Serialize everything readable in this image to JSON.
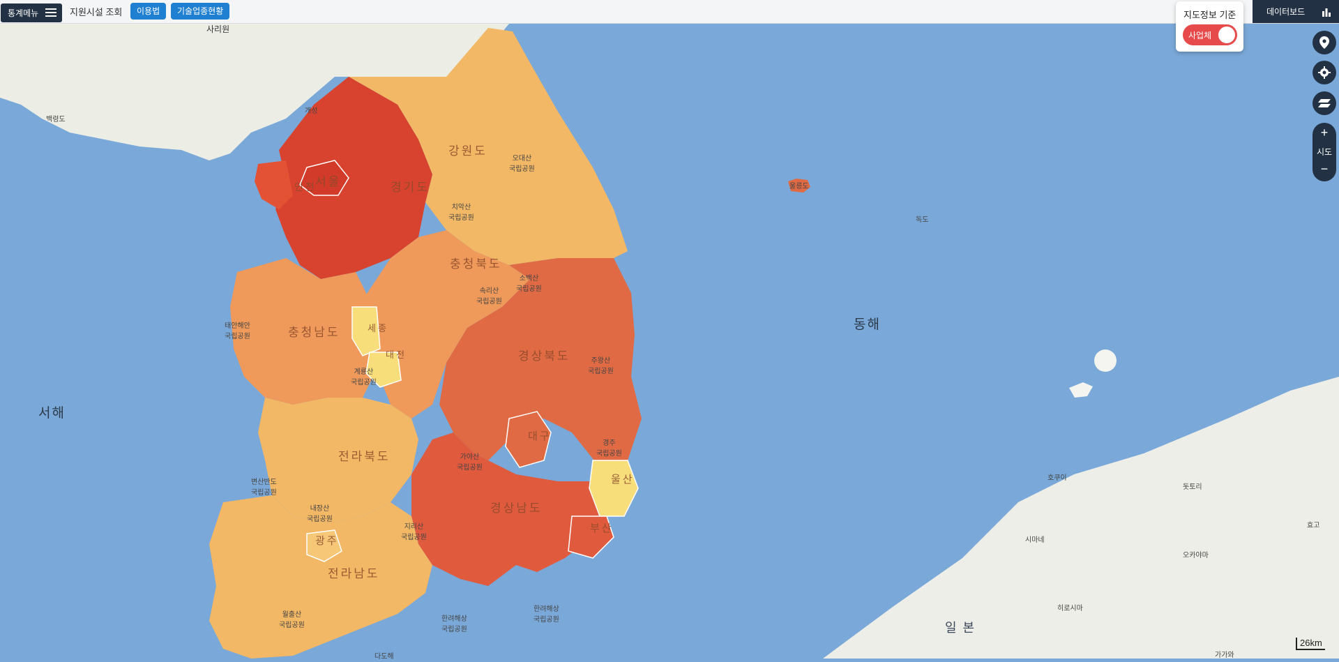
{
  "topbar": {
    "menu_label": "통계메뉴",
    "support_label": "지원시설 조회",
    "usage_button": "이용법",
    "tech_button": "기술업종현황",
    "dashboard_label": "데이터보드"
  },
  "map_criteria": {
    "title": "지도정보 기준",
    "toggle_label": "사업체",
    "toggle_on": true,
    "accent_color": "#e74a4a"
  },
  "controls": {
    "zoom_in": "+",
    "zoom_level_label": "시도",
    "zoom_out": "−"
  },
  "map": {
    "seas": [
      "서해",
      "동해"
    ],
    "country_label": "일 본",
    "regions": [
      {
        "name": "서울",
        "level": "high"
      },
      {
        "name": "인천",
        "level": "high"
      },
      {
        "name": "경기도",
        "level": "high"
      },
      {
        "name": "강원도",
        "level": "low-mid"
      },
      {
        "name": "충청북도",
        "level": "mid"
      },
      {
        "name": "충청남도",
        "level": "mid"
      },
      {
        "name": "세종",
        "level": "low"
      },
      {
        "name": "대전",
        "level": "low"
      },
      {
        "name": "경상북도",
        "level": "mid-high"
      },
      {
        "name": "대구",
        "level": "mid-high"
      },
      {
        "name": "울산",
        "level": "low"
      },
      {
        "name": "경상남도",
        "level": "high"
      },
      {
        "name": "부산",
        "level": "mid-high"
      },
      {
        "name": "전라북도",
        "level": "mid"
      },
      {
        "name": "광주",
        "level": "low-mid"
      },
      {
        "name": "전라남도",
        "level": "low-mid"
      }
    ],
    "place_labels": {
      "sariwon": "사리원",
      "baengnyeong": "백령도",
      "gaeseong": "개성",
      "ulleungdo": "울릉도",
      "dokdo": "독도",
      "odaesan": "오대산\n국립공원",
      "chiaksan": "치악산\n국립공원",
      "sobaeksan": "소백산\n국립공원",
      "juwangsan": "주왕산\n국립공원",
      "gyeongju": "경주\n국립공원",
      "taean": "태안해안\n국립공원",
      "gyeryongsan": "계룡산\n국립공원",
      "byeonsan": "변산반도\n국립공원",
      "naejangsan": "내장산\n국립공원",
      "jirisan": "지리산\n국립공원",
      "gayasan": "가야산\n국립공원",
      "hallyeo1": "한려해상\n국립공원",
      "hallyeo2": "한려해상\n국립공원",
      "wolchulsan": "월출산\n국립공원",
      "nadohae": "다도해",
      "songnisan": "속리산\n국립공원",
      "hokui": "호쿠이",
      "dottori": "돗토리",
      "simane": "시마네",
      "okayama": "오카야마",
      "hyogo": "효고",
      "hiroshima": "히로시마",
      "gagawa": "가가와"
    },
    "colors": {
      "high": "#d8432f",
      "mid_high": "#e06a44",
      "mid": "#ef9a5a",
      "low_mid": "#f3b865",
      "low": "#f7de7a",
      "sea": "#7aa8d8",
      "land": "#f1f1ec"
    }
  },
  "scale_label": "26km"
}
